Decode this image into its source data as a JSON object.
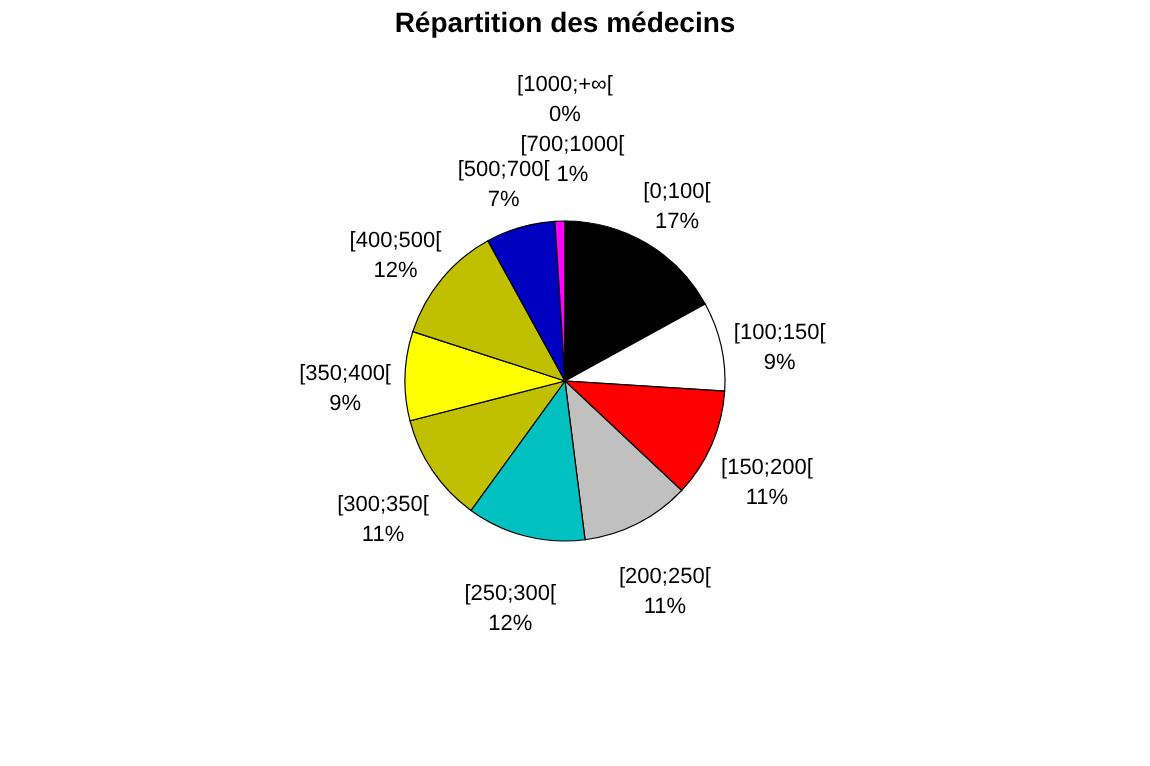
{
  "chart_data": {
    "type": "pie",
    "title": "Répartition des médecins",
    "categories": [
      "[0;100[",
      "[100;150[",
      "[150;200[",
      "[200;250[",
      "[250;300[",
      "[300;350[",
      "[350;400[",
      "[400;500[",
      "[500;700[",
      "[700;1000[",
      "[1000;+∞["
    ],
    "values": [
      17,
      9,
      11,
      11,
      12,
      11,
      9,
      12,
      7,
      1,
      0
    ],
    "colors": [
      "#000000",
      "#ffffff",
      "#ff0000",
      "#c0c0c0",
      "#00c0c0",
      "#c0c000",
      "#ffff00",
      "#c0c000",
      "#0000c0",
      "#ff00ff",
      "#800000"
    ],
    "value_labels": [
      "17%",
      "9%",
      "11%",
      "11%",
      "12%",
      "11%",
      "9%",
      "12%",
      "7%",
      "1%",
      "0%"
    ]
  }
}
